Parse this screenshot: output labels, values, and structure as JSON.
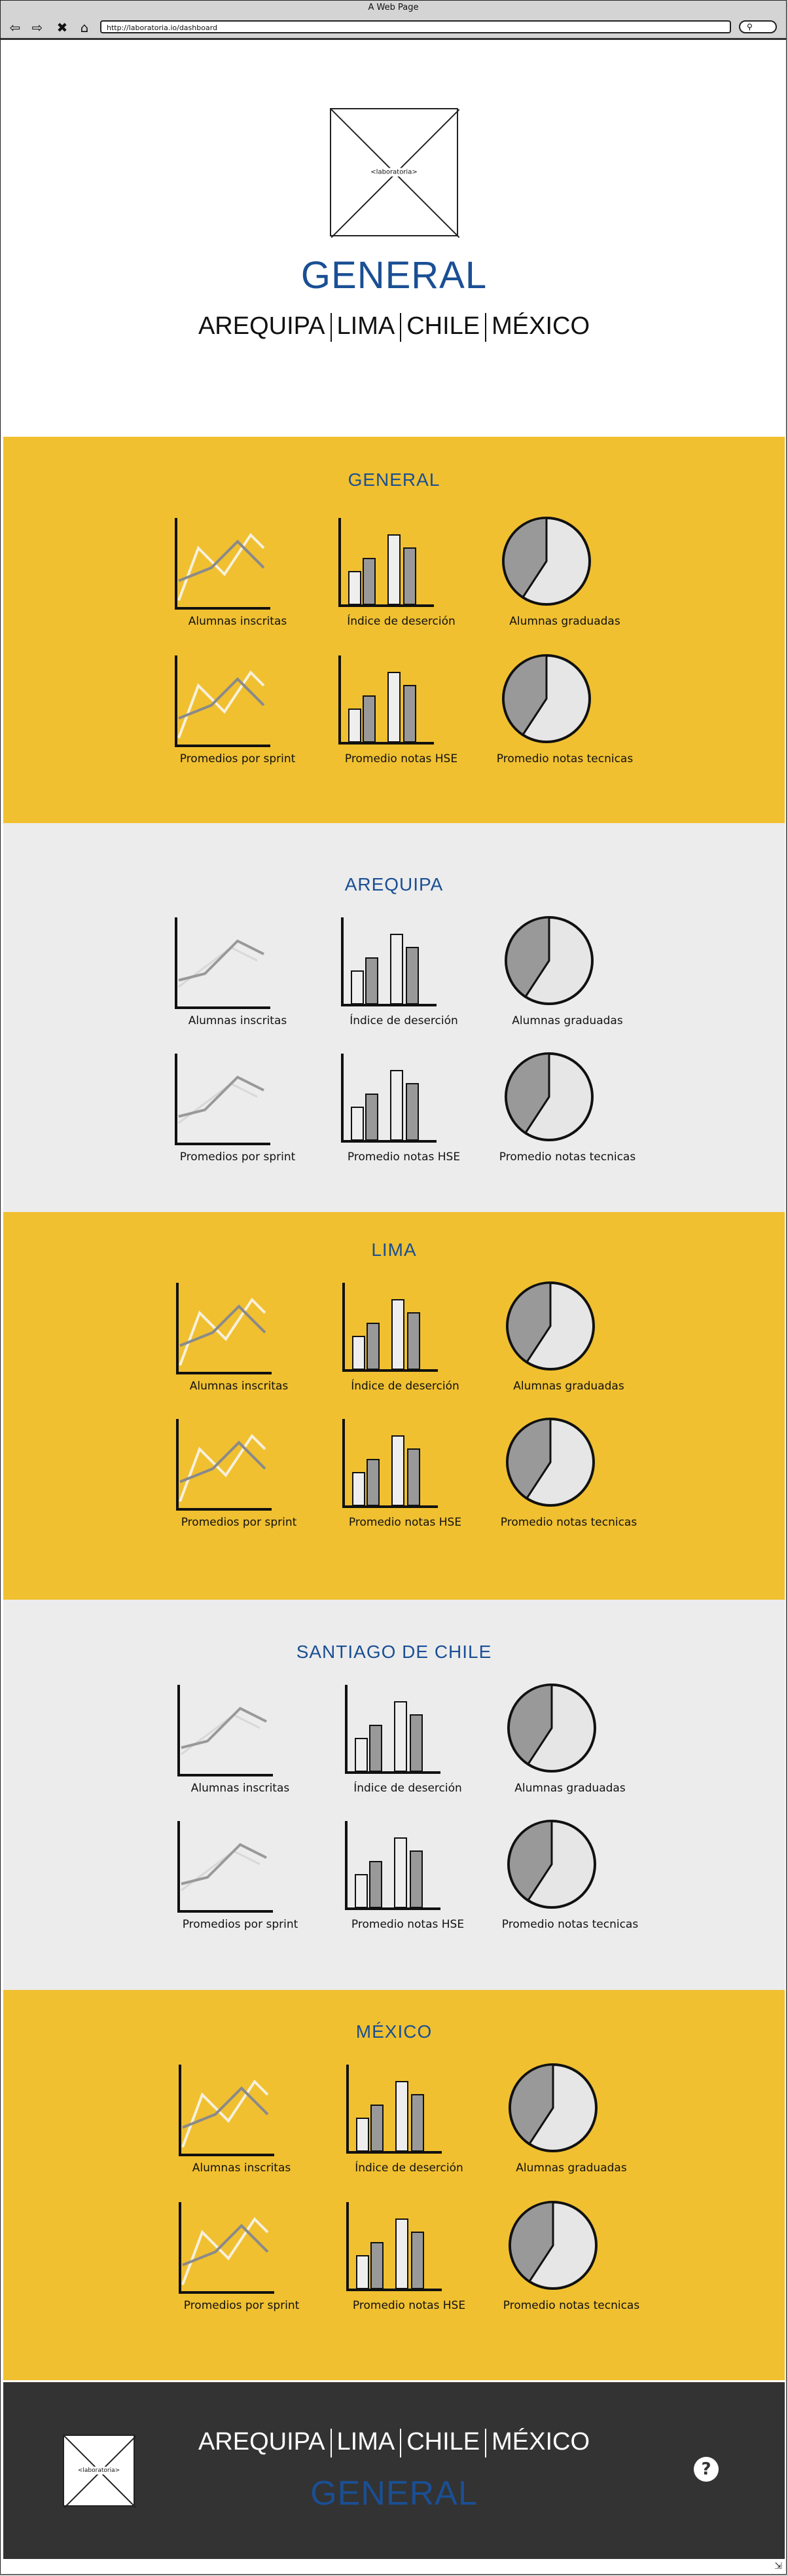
{
  "window": {
    "title": "A Web Page",
    "url": "http://laboratoria.io/dashboard"
  },
  "browser_icons": [
    "back-arrow-icon",
    "forward-arrow-icon",
    "close-icon",
    "home-icon",
    "search-icon"
  ],
  "header": {
    "logo_label": "<laboratoria>",
    "title": "GENERAL",
    "nav": [
      "AREQUIPA",
      "LIMA",
      "CHILE",
      "MÉXICO"
    ]
  },
  "chart_labels": [
    "Alumnas inscritas",
    "Índice de deserción",
    "Alumnas graduadas",
    "Promedios por sprint",
    "Promedio notas HSE",
    "Promedio notas tecnicas"
  ],
  "sections": [
    {
      "title": "GENERAL"
    },
    {
      "title": "AREQUIPA"
    },
    {
      "title": "LIMA"
    },
    {
      "title": "SANTIAGO DE CHILE"
    },
    {
      "title": "MÉXICO"
    }
  ],
  "footer": {
    "logo_label": "<laboratoria>",
    "nav": [
      "AREQUIPA",
      "LIMA",
      "CHILE",
      "MÉXICO"
    ],
    "title": "GENERAL",
    "help": "?"
  },
  "colors": {
    "yellow": "#f0c030",
    "gray": "#ececec",
    "dark": "#333333",
    "title_blue": "#1a4f94"
  }
}
